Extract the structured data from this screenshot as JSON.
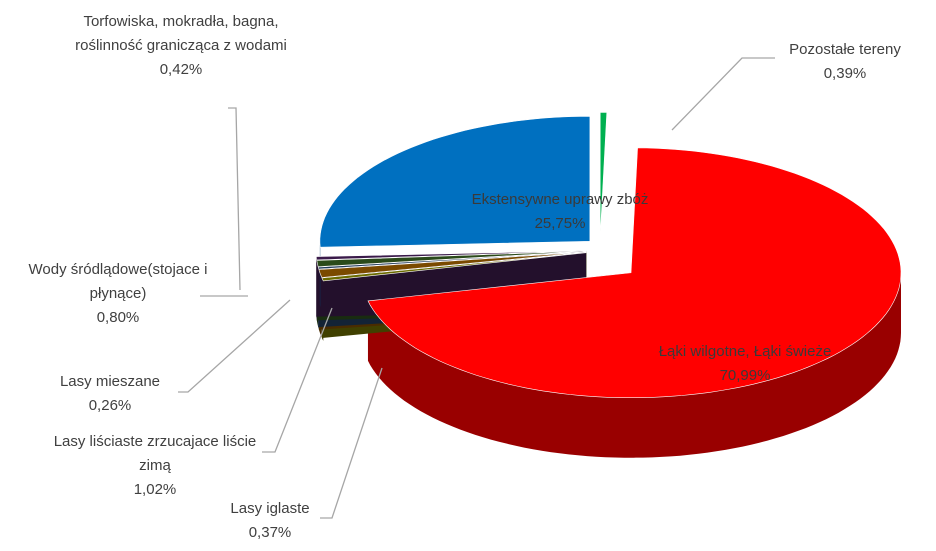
{
  "chart_data": {
    "type": "pie3d",
    "categories": [
      "Pozostałe tereny",
      "Łąki wilgotne, Łąki świeże",
      "Lasy iglaste",
      "Lasy liściaste zrzucajace liście zimą",
      "Lasy mieszane",
      "Wody śródlądowe(stojace i płynące)",
      "Torfowiska, mokradła, bagna, roślinność granicząca z wodami",
      "Ekstensywne uprawy zbóż"
    ],
    "values": [
      0.39,
      70.99,
      0.37,
      1.02,
      0.26,
      0.8,
      0.42,
      25.75
    ],
    "value_labels": [
      "0,39%",
      "70,99%",
      "0,37%",
      "1,02%",
      "0,26%",
      "0,80%",
      "0,42%",
      "25,75%"
    ],
    "colors": [
      "#00b050",
      "#ff0000",
      "#6b6b00",
      "#7a4a00",
      "#1f3a5a",
      "#2a4a1a",
      "#3a1a4a",
      "#0070c0"
    ]
  }
}
